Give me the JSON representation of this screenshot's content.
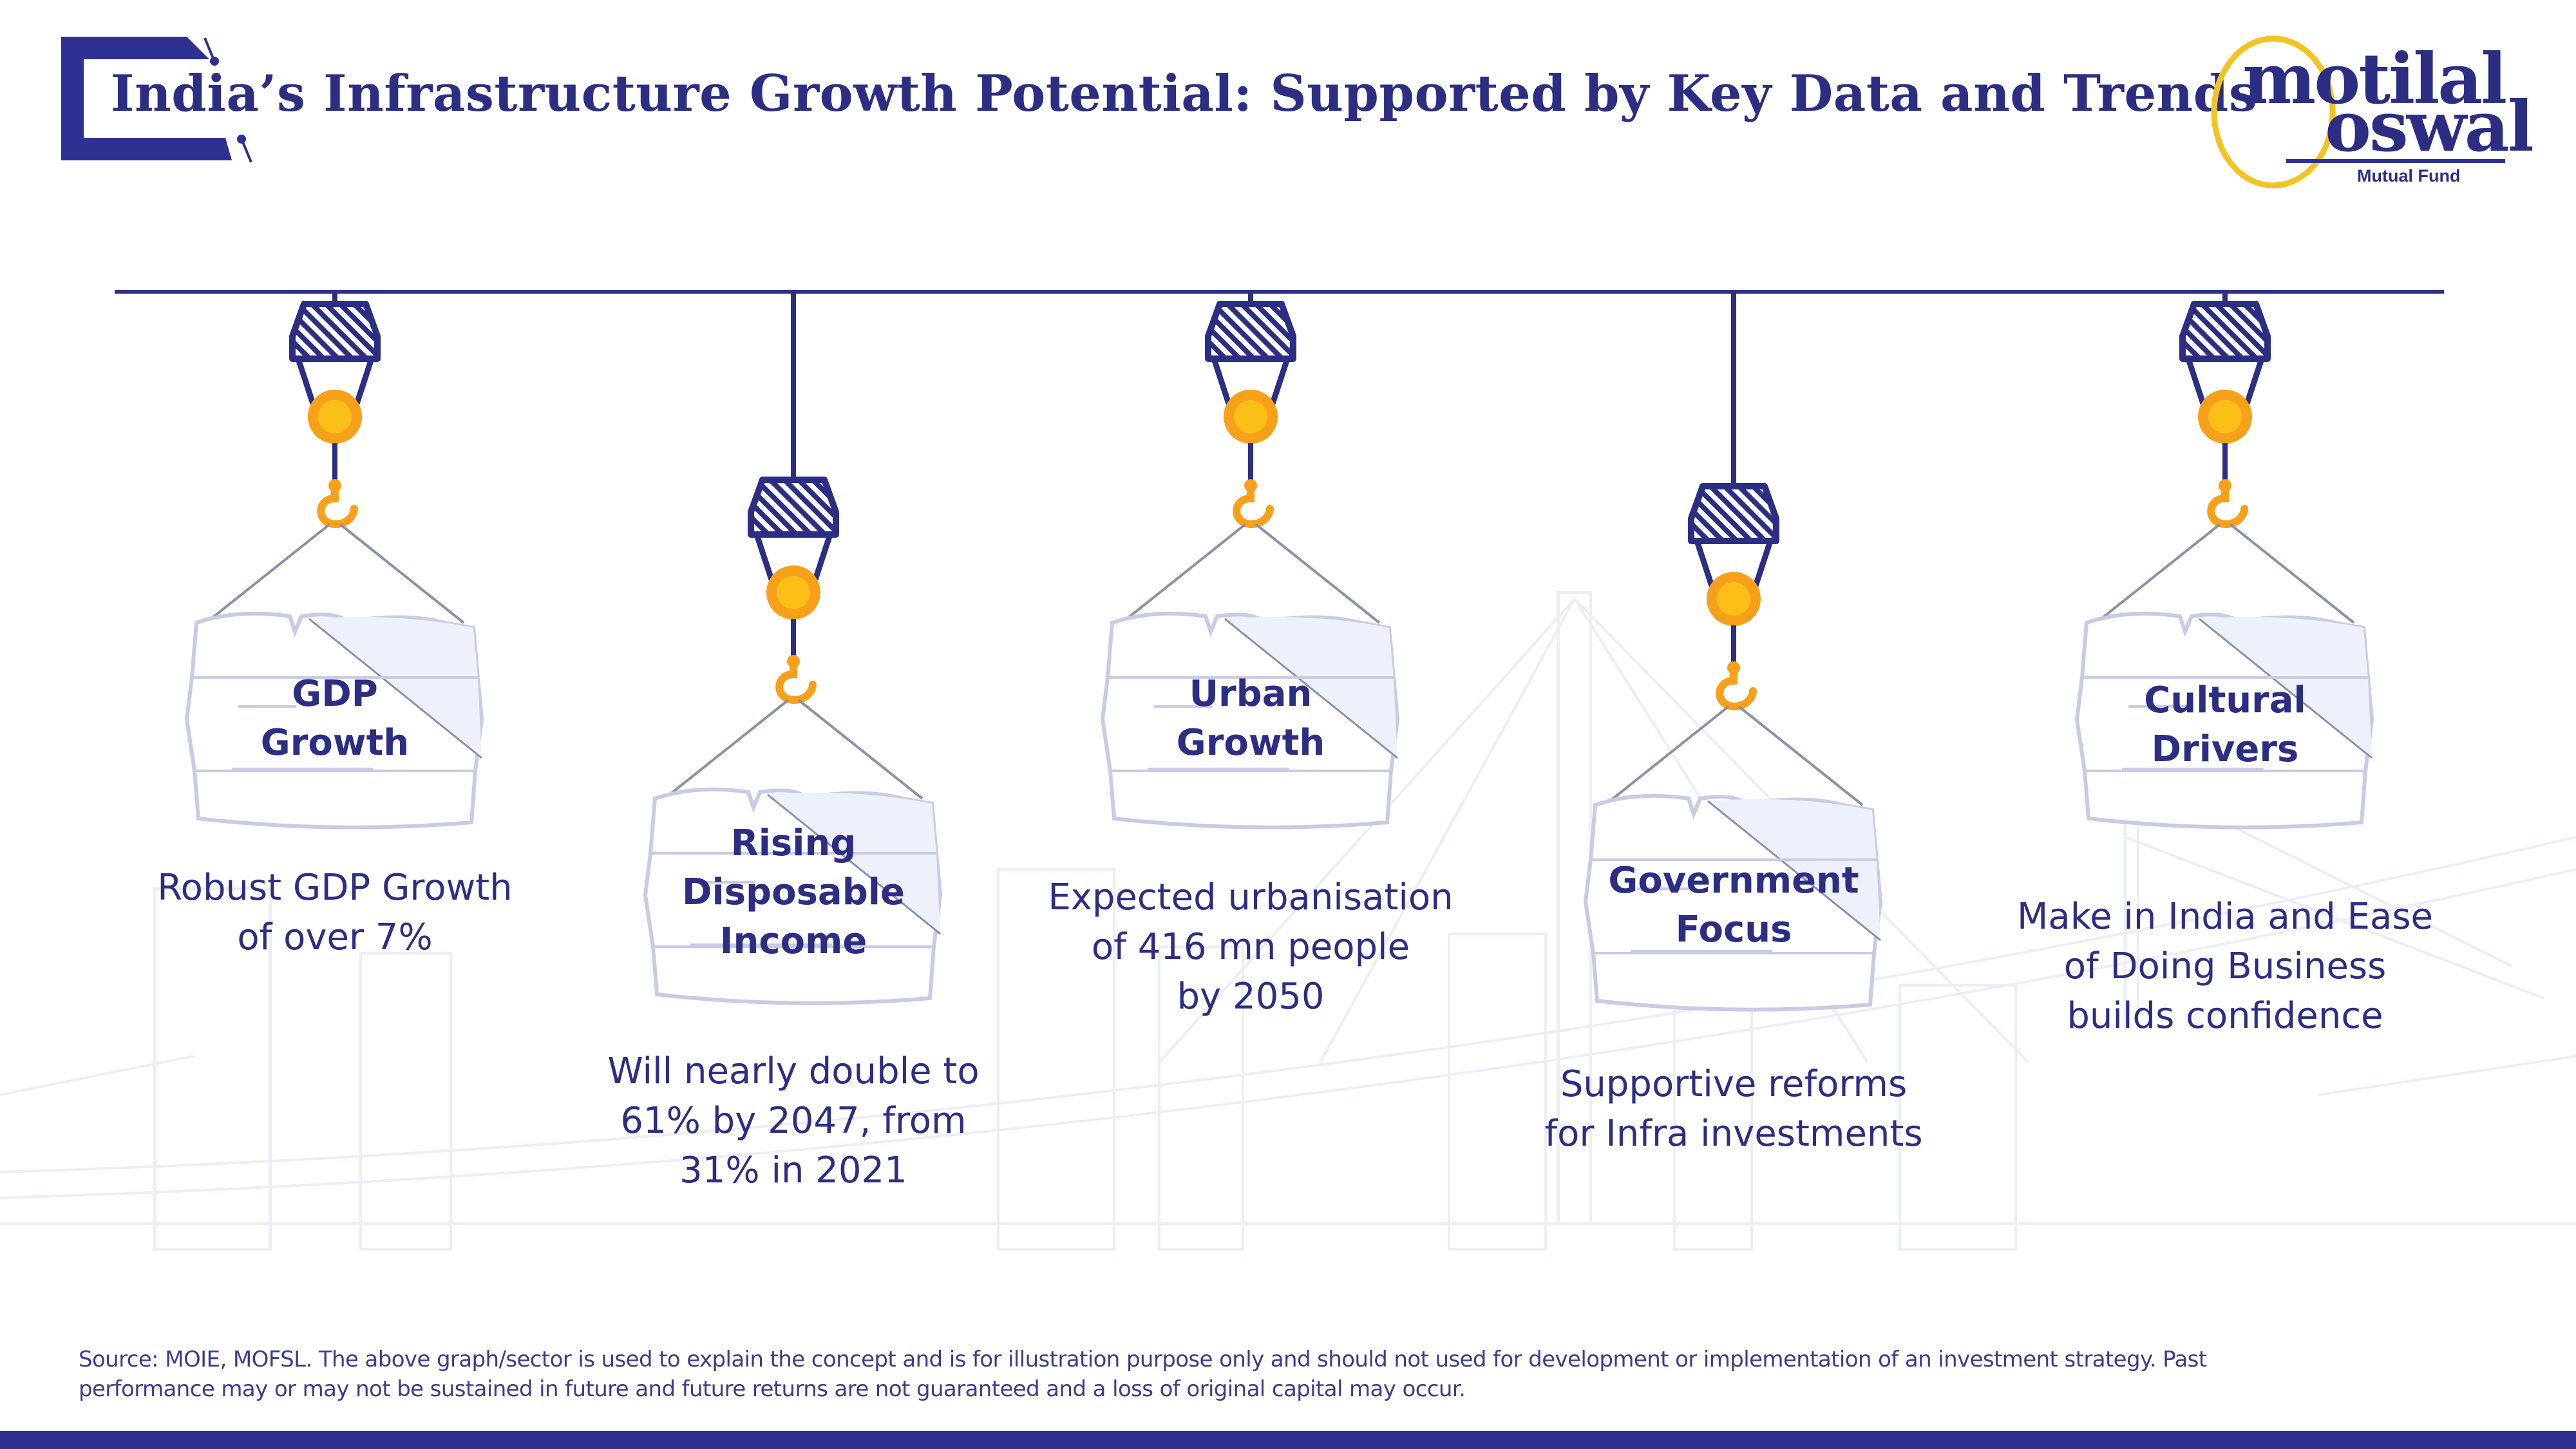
{
  "header": {
    "title": "India’s Infrastructure Growth Potential: Supported by Key Data and Trends"
  },
  "logo": {
    "line1": "motilal",
    "line2": "oswal",
    "subtitle": "Mutual Fund"
  },
  "colors": {
    "navy": "#2b2e83",
    "orange": "#f7a11a",
    "yellow": "#fcc419",
    "board_fill": "#eef0fb",
    "board_stroke": "#c9cbe6",
    "rope": "#8e8fa8"
  },
  "drivers": [
    {
      "label_lines": [
        "GDP",
        "Growth"
      ],
      "desc_lines": [
        "Robust GDP Growth",
        "of over 7%"
      ],
      "icon": "crane-hook-icon"
    },
    {
      "label_lines": [
        "Rising",
        "Disposable",
        "Income"
      ],
      "desc_lines": [
        "Will nearly double to",
        "61% by 2047, from",
        "31% in 2021"
      ],
      "icon": "crane-hook-icon"
    },
    {
      "label_lines": [
        "Urban",
        "Growth"
      ],
      "desc_lines": [
        "Expected urbanisation",
        "of 416 mn people",
        "by 2050"
      ],
      "icon": "crane-hook-icon"
    },
    {
      "label_lines": [
        "Government",
        "Focus"
      ],
      "desc_lines": [
        "Supportive reforms",
        "for Infra investments"
      ],
      "icon": "crane-hook-icon"
    },
    {
      "label_lines": [
        "Cultural",
        "Drivers"
      ],
      "desc_lines": [
        "Make in India and Ease",
        "of Doing Business",
        "builds confidence"
      ],
      "icon": "crane-hook-icon"
    }
  ],
  "footer": {
    "disclaimer_line1": "Source: MOIE, MOFSL. The above graph/sector is used to explain the concept and is for illustration purpose only and should not used for development or implementation of an investment strategy. Past",
    "disclaimer_line2": "performance may or may not be sustained in future and future returns are not guaranteed and a loss of original capital may occur."
  }
}
